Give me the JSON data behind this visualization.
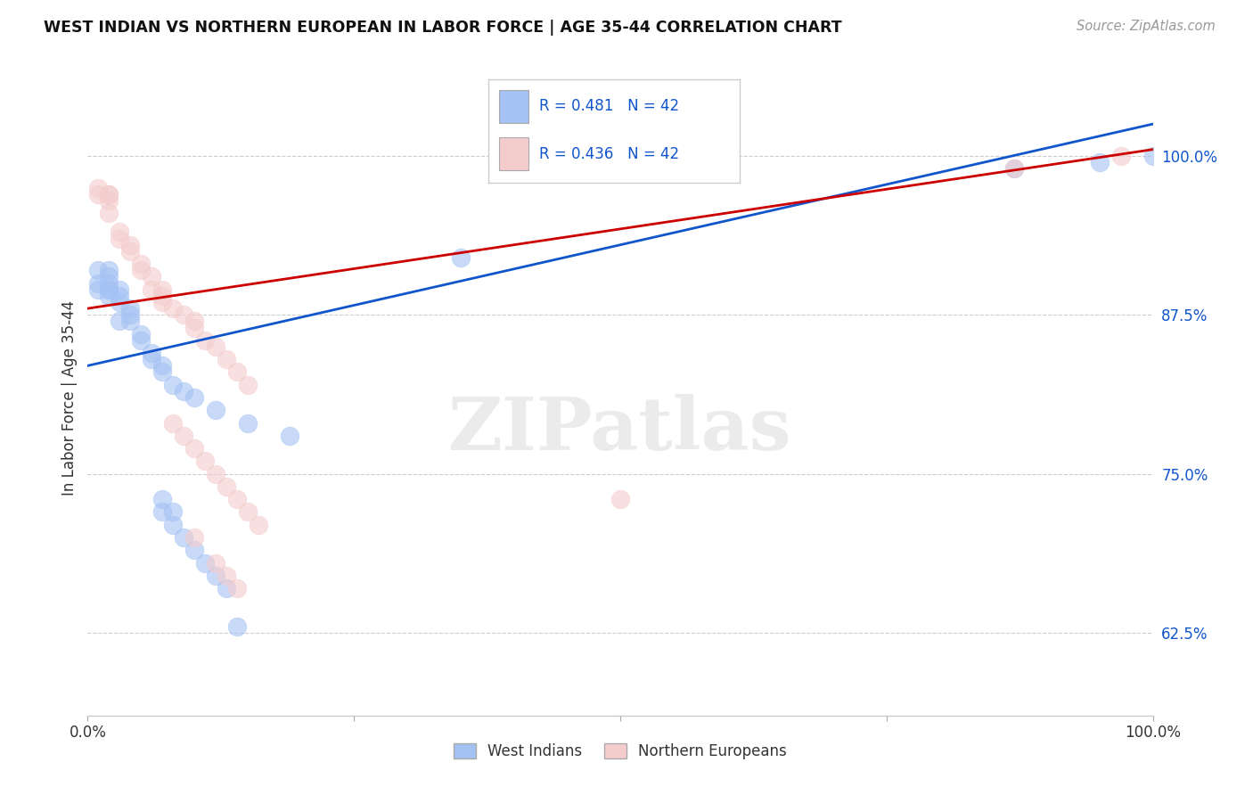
{
  "title": "WEST INDIAN VS NORTHERN EUROPEAN IN LABOR FORCE | AGE 35-44 CORRELATION CHART",
  "source": "Source: ZipAtlas.com",
  "ylabel": "In Labor Force | Age 35-44",
  "xlim": [
    0.0,
    1.0
  ],
  "ylim": [
    0.56,
    1.06
  ],
  "xticks": [
    0.0,
    0.25,
    0.5,
    0.75,
    1.0
  ],
  "xtick_labels": [
    "0.0%",
    "",
    "",
    "",
    "100.0%"
  ],
  "ytick_labels": [
    "62.5%",
    "75.0%",
    "87.5%",
    "100.0%"
  ],
  "yticks": [
    0.625,
    0.75,
    0.875,
    1.0
  ],
  "blue_color": "#a4c2f4",
  "pink_color": "#f4cccc",
  "line_blue": "#1155cc",
  "line_pink": "#cc0000",
  "blue_scatter_x": [
    0.01,
    0.01,
    0.01,
    0.02,
    0.02,
    0.02,
    0.02,
    0.02,
    0.02,
    0.03,
    0.03,
    0.03,
    0.03,
    0.04,
    0.04,
    0.04,
    0.05,
    0.05,
    0.06,
    0.06,
    0.07,
    0.07,
    0.08,
    0.09,
    0.1,
    0.12,
    0.15,
    0.19,
    0.35,
    0.87,
    0.95,
    1.0,
    0.07,
    0.07,
    0.08,
    0.08,
    0.09,
    0.1,
    0.11,
    0.12,
    0.13,
    0.14
  ],
  "blue_scatter_y": [
    0.895,
    0.9,
    0.91,
    0.895,
    0.9,
    0.905,
    0.91,
    0.895,
    0.89,
    0.885,
    0.89,
    0.895,
    0.87,
    0.88,
    0.87,
    0.875,
    0.86,
    0.855,
    0.845,
    0.84,
    0.835,
    0.83,
    0.82,
    0.815,
    0.81,
    0.8,
    0.79,
    0.78,
    0.92,
    0.99,
    0.995,
    1.0,
    0.73,
    0.72,
    0.72,
    0.71,
    0.7,
    0.69,
    0.68,
    0.67,
    0.66,
    0.63
  ],
  "pink_scatter_x": [
    0.01,
    0.01,
    0.02,
    0.02,
    0.02,
    0.02,
    0.03,
    0.03,
    0.04,
    0.04,
    0.05,
    0.05,
    0.06,
    0.06,
    0.07,
    0.07,
    0.07,
    0.08,
    0.09,
    0.1,
    0.1,
    0.11,
    0.12,
    0.13,
    0.14,
    0.15,
    0.5,
    0.87,
    0.97,
    0.08,
    0.09,
    0.1,
    0.11,
    0.12,
    0.13,
    0.14,
    0.15,
    0.16,
    0.1,
    0.12,
    0.13,
    0.14
  ],
  "pink_scatter_y": [
    0.97,
    0.975,
    0.97,
    0.97,
    0.965,
    0.955,
    0.94,
    0.935,
    0.93,
    0.925,
    0.915,
    0.91,
    0.905,
    0.895,
    0.895,
    0.89,
    0.885,
    0.88,
    0.875,
    0.87,
    0.865,
    0.855,
    0.85,
    0.84,
    0.83,
    0.82,
    0.73,
    0.99,
    1.0,
    0.79,
    0.78,
    0.77,
    0.76,
    0.75,
    0.74,
    0.73,
    0.72,
    0.71,
    0.7,
    0.68,
    0.67,
    0.66
  ],
  "blue_line_x": [
    0.0,
    1.0
  ],
  "blue_line_y": [
    0.835,
    1.025
  ],
  "pink_line_x": [
    0.0,
    1.0
  ],
  "pink_line_y": [
    0.88,
    1.005
  ],
  "watermark_text": "ZIPatlas",
  "legend_items": [
    {
      "color": "#a4c2f4",
      "text": "R = 0.481   N = 42"
    },
    {
      "color": "#f4cccc",
      "text": "R = 0.436   N = 42"
    }
  ],
  "bottom_legend": [
    {
      "color": "#a4c2f4",
      "label": "West Indians"
    },
    {
      "color": "#f4cccc",
      "label": "Northern Europeans"
    }
  ],
  "background_color": "#ffffff",
  "grid_color": "#cccccc",
  "text_color_blue": "#1155cc",
  "text_color_dark": "#333333"
}
